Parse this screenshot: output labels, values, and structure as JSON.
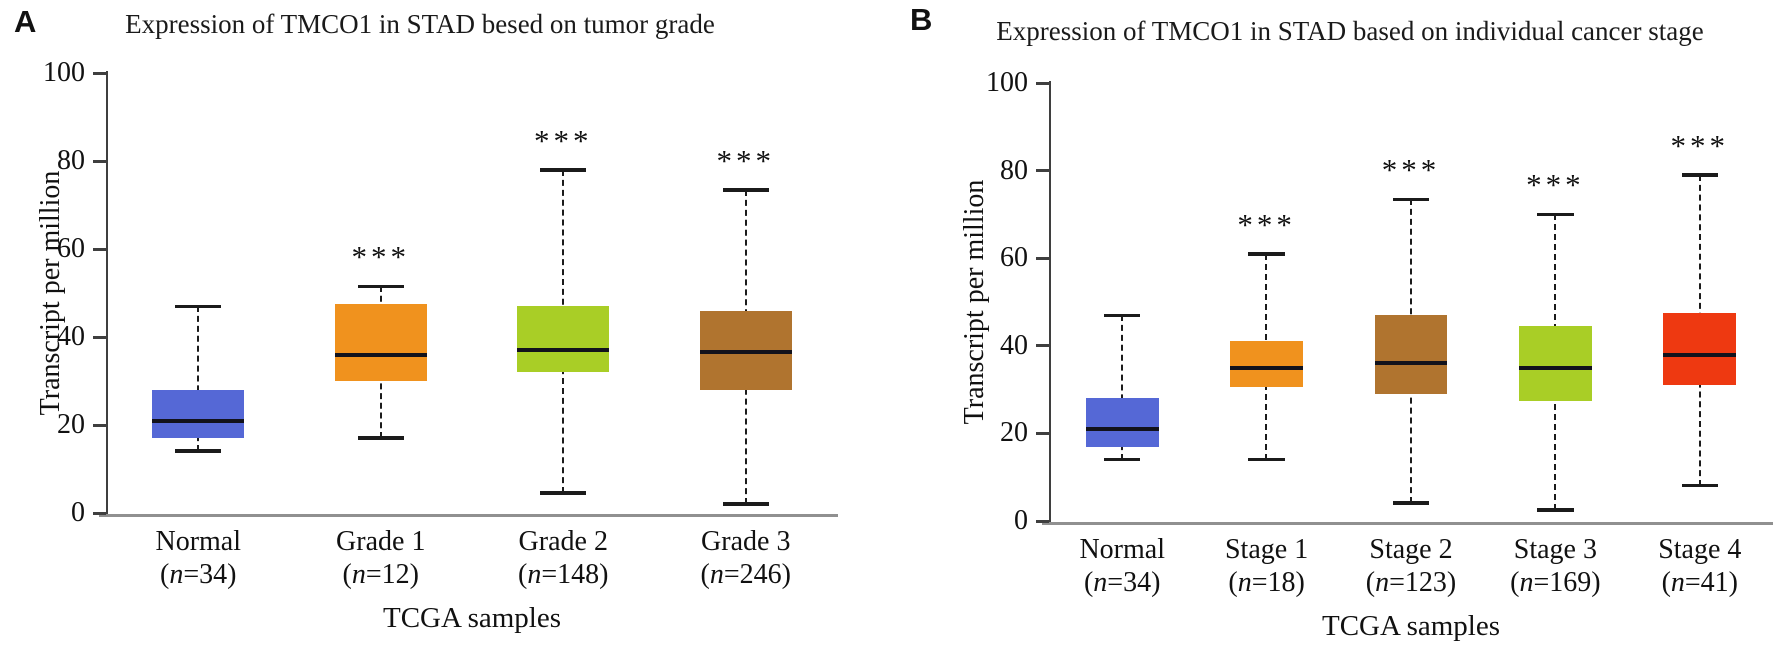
{
  "figure": {
    "background": "#ffffff"
  },
  "chart_data": [
    {
      "type": "box",
      "panel_label": "A",
      "title": "Expression of TMCO1 in STAD besed on tumor grade",
      "xlabel": "TCGA samples",
      "ylabel": "Transcript per million",
      "ylim": [
        0,
        100
      ],
      "yticks": [
        0,
        20,
        40,
        60,
        80,
        100
      ],
      "grid": false,
      "legend": "none",
      "boxes": [
        {
          "category": "Normal",
          "n": 34,
          "color": "#5568d6",
          "whisker_low": 14,
          "q1": 17,
          "median": 21,
          "q3": 28,
          "whisker_high": 47,
          "significance": ""
        },
        {
          "category": "Grade 1",
          "n": 12,
          "color": "#f0921e",
          "whisker_low": 17,
          "q1": 30,
          "median": 36,
          "q3": 47.5,
          "whisker_high": 51.5,
          "significance": "***"
        },
        {
          "category": "Grade 2",
          "n": 148,
          "color": "#a9ce26",
          "whisker_low": 4.5,
          "q1": 32,
          "median": 37,
          "q3": 47,
          "whisker_high": 78,
          "significance": "***"
        },
        {
          "category": "Grade 3",
          "n": 246,
          "color": "#b0742f",
          "whisker_low": 2,
          "q1": 28,
          "median": 36.5,
          "q3": 46,
          "whisker_high": 73.5,
          "significance": "***"
        }
      ]
    },
    {
      "type": "box",
      "panel_label": "B",
      "title": "Expression of TMCO1 in STAD based on individual cancer stage",
      "xlabel": "TCGA samples",
      "ylabel": "Transcript per million",
      "ylim": [
        0,
        100
      ],
      "yticks": [
        0,
        20,
        40,
        60,
        80,
        100
      ],
      "grid": false,
      "legend": "none",
      "boxes": [
        {
          "category": "Normal",
          "n": 34,
          "color": "#5568d6",
          "whisker_low": 14,
          "q1": 17,
          "median": 21,
          "q3": 28,
          "whisker_high": 47,
          "significance": ""
        },
        {
          "category": "Stage 1",
          "n": 18,
          "color": "#f0921e",
          "whisker_low": 14,
          "q1": 30.5,
          "median": 35,
          "q3": 41,
          "whisker_high": 61,
          "significance": "***"
        },
        {
          "category": "Stage 2",
          "n": 123,
          "color": "#b0742f",
          "whisker_low": 4,
          "q1": 29,
          "median": 36,
          "q3": 47,
          "whisker_high": 73.5,
          "significance": "***"
        },
        {
          "category": "Stage 3",
          "n": 169,
          "color": "#a9ce26",
          "whisker_low": 2.5,
          "q1": 27.5,
          "median": 35,
          "q3": 44.5,
          "whisker_high": 70,
          "significance": "***"
        },
        {
          "category": "Stage 4",
          "n": 41,
          "color": "#ee3911",
          "whisker_low": 8,
          "q1": 31,
          "median": 38,
          "q3": 47.5,
          "whisker_high": 79,
          "significance": "***"
        }
      ]
    }
  ]
}
